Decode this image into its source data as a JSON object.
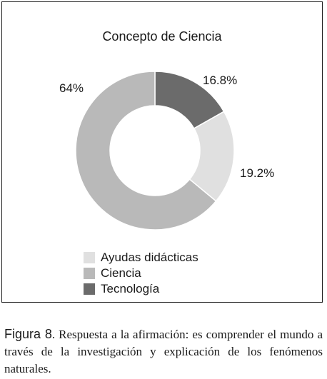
{
  "chart_data": {
    "type": "pie",
    "title": "Concepto de Ciencia",
    "categories": [
      "Ayudas didácticas",
      "Ciencia",
      "Tecnología"
    ],
    "values": [
      19.2,
      64,
      16.8
    ],
    "value_labels": [
      "19.2%",
      "64%",
      "16.8%"
    ],
    "colors": [
      "#e0e0e0",
      "#b9b9b9",
      "#6b6b6b"
    ],
    "donut": true,
    "legend_position": "bottom-left"
  },
  "caption": {
    "label": "Figura 8",
    "text": ". Respuesta a la afirmación: es comprender el mundo a través de la investigación y explicación de los fenómenos naturales."
  }
}
